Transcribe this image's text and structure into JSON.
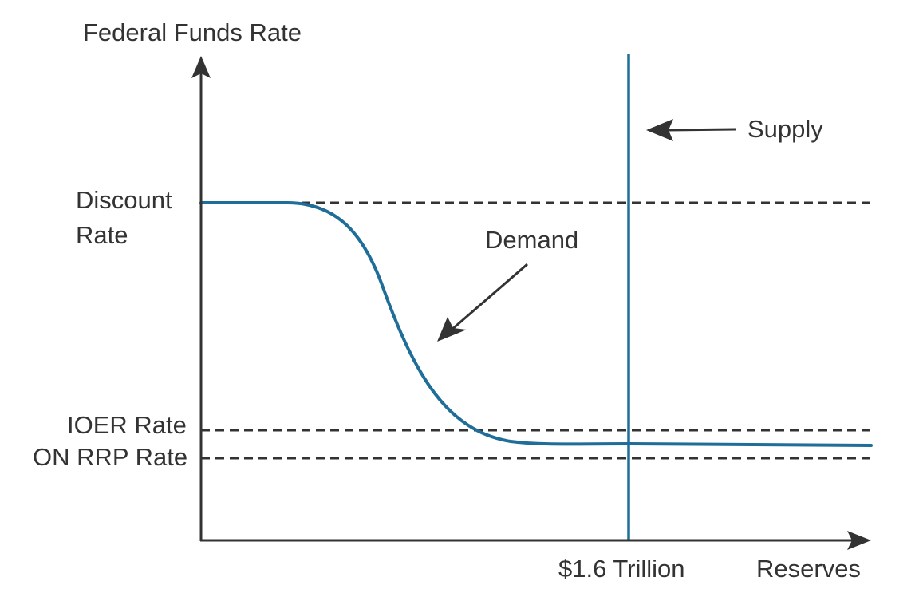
{
  "y_axis_label": "Federal Funds Rate",
  "x_axis_label": "Reserves",
  "rates": {
    "discount_line1": "Discount",
    "discount_line2": "Rate",
    "ioer": "IOER Rate",
    "on_rrp": "ON RRP Rate"
  },
  "curves": {
    "demand": "Demand",
    "supply": "Supply"
  },
  "supply_quantity": "$1.6 Trillion",
  "colors": {
    "axis": "#333333",
    "curve": "#1f6e99",
    "dashed": "#333333",
    "text": "#333333"
  }
}
